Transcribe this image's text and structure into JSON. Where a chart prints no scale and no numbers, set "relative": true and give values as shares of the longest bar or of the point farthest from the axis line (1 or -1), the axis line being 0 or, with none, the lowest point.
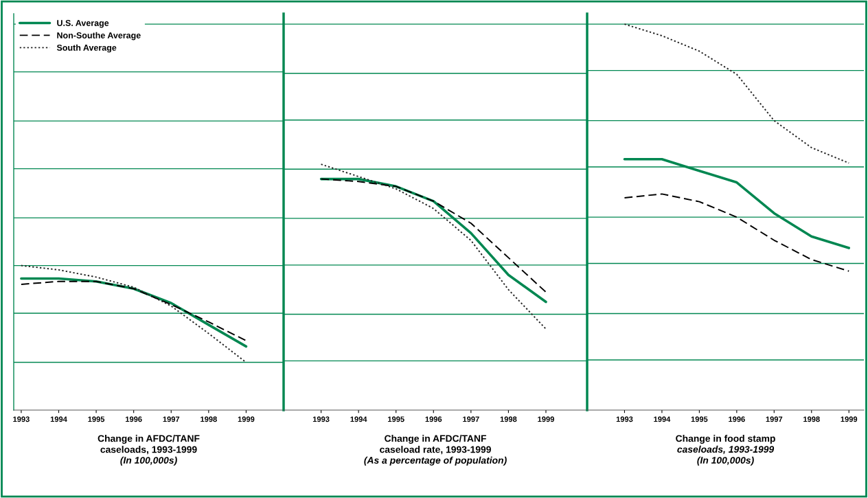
{
  "chart_data": [
    {
      "type": "line",
      "relative": true,
      "xlabel": "Change in AFDC/TANF\ncaseloads, 1993-1999",
      "subtitle": "(In 100,000s)",
      "x": [
        1993,
        1994,
        1995,
        1996,
        1997,
        1998,
        1999
      ],
      "xlim": [
        1992.8,
        2000.0
      ],
      "xticks": [
        1993,
        1994,
        1995,
        1996,
        1997,
        1998,
        1999
      ],
      "tick_labels": "x",
      "legend": "top left",
      "ref_lines": [
        {
          "axis": "y",
          "value": 0.33,
          "color": "#008751"
        },
        {
          "axis": "y",
          "value": 0.67,
          "color": "#008751"
        },
        {
          "axis": "y",
          "value": 1.0,
          "color": "#008751"
        },
        {
          "axis": "y",
          "value": 1.33,
          "color": "#008751"
        },
        {
          "axis": "y",
          "value": 1.67,
          "color": "#008751"
        },
        {
          "axis": "y",
          "value": 2.0,
          "color": "#008751"
        },
        {
          "axis": "y",
          "value": 2.34,
          "color": "#008751"
        },
        {
          "axis": "y",
          "value": 2.67,
          "color": "#008751"
        }
      ],
      "series": [
        {
          "name": "U.S. Average",
          "color": "#008751",
          "line_style": "solid",
          "values": [
            0.91,
            0.91,
            0.89,
            0.84,
            0.74,
            0.59,
            0.44
          ]
        },
        {
          "name": "Non-Southe Average",
          "color": "#000000",
          "line_style": "dashed",
          "values": [
            0.87,
            0.89,
            0.89,
            0.84,
            0.73,
            0.61,
            0.48
          ]
        },
        {
          "name": "South Average",
          "color": "#222222",
          "line_style": "dotted",
          "values": [
            1.0,
            0.97,
            0.92,
            0.85,
            0.72,
            0.53,
            0.33
          ]
        }
      ]
    },
    {
      "type": "line",
      "relative": true,
      "xlabel": "Change in AFDC/TANF\ncaseload rate, 1993-1999",
      "subtitle": "(As a percentage of population)",
      "x": [
        1993,
        1994,
        1995,
        1996,
        1997,
        1998,
        1999
      ],
      "xlim": [
        1992.0,
        2000.1
      ],
      "xticks": [
        1993,
        1994,
        1995,
        1996,
        1997,
        1998,
        1999
      ],
      "tick_labels": "x",
      "ref_lines": [
        {
          "axis": "y",
          "value": 0.2,
          "color": "#008751"
        },
        {
          "axis": "y",
          "value": 0.39,
          "color": "#008751"
        },
        {
          "axis": "y",
          "value": 0.59,
          "color": "#008751"
        },
        {
          "axis": "y",
          "value": 0.78,
          "color": "#008751"
        },
        {
          "axis": "y",
          "value": 0.98,
          "color": "#008751"
        },
        {
          "axis": "y",
          "value": 1.18,
          "color": "#008751"
        },
        {
          "axis": "y",
          "value": 1.37,
          "color": "#008751"
        },
        {
          "axis": "y",
          "value": 1.57,
          "color": "#008751"
        }
      ],
      "series": [
        {
          "color": "#008751",
          "line_style": "solid",
          "values": [
            0.94,
            0.94,
            0.91,
            0.85,
            0.72,
            0.55,
            0.44
          ]
        },
        {
          "color": "#000000",
          "line_style": "dashed",
          "values": [
            0.94,
            0.93,
            0.91,
            0.85,
            0.76,
            0.62,
            0.48
          ]
        },
        {
          "color": "#222222",
          "line_style": "dotted",
          "values": [
            1.0,
            0.95,
            0.9,
            0.82,
            0.69,
            0.49,
            0.33
          ]
        }
      ]
    },
    {
      "type": "line",
      "relative": true,
      "xlabel": "Change in food stamp",
      "subtitle": "caseloads, 1993-1999\n(In 100,000s)",
      "x": [
        1993,
        1994,
        1995,
        1996,
        1997,
        1998,
        1999
      ],
      "xlim": [
        1992.0,
        1999.4
      ],
      "xticks": [
        1993,
        1994,
        1995,
        1996,
        1997,
        1998,
        1999
      ],
      "tick_labels": "x",
      "ref_lines": [
        {
          "axis": "y",
          "value": 0.13,
          "color": "#008751"
        },
        {
          "axis": "y",
          "value": 0.25,
          "color": "#008751"
        },
        {
          "axis": "y",
          "value": 0.38,
          "color": "#008751"
        },
        {
          "axis": "y",
          "value": 0.5,
          "color": "#008751"
        },
        {
          "axis": "y",
          "value": 0.63,
          "color": "#008751"
        },
        {
          "axis": "y",
          "value": 0.75,
          "color": "#008751"
        },
        {
          "axis": "y",
          "value": 0.88,
          "color": "#008751"
        },
        {
          "axis": "y",
          "value": 1.0,
          "color": "#008751"
        }
      ],
      "series": [
        {
          "color": "#008751",
          "line_style": "solid",
          "values": [
            0.65,
            0.65,
            0.62,
            0.59,
            0.51,
            0.45,
            0.42
          ]
        },
        {
          "color": "#000000",
          "line_style": "dashed",
          "values": [
            0.55,
            0.56,
            0.54,
            0.5,
            0.44,
            0.39,
            0.36
          ]
        },
        {
          "color": "#222222",
          "line_style": "dotted",
          "values": [
            1.0,
            0.97,
            0.93,
            0.87,
            0.75,
            0.68,
            0.64
          ]
        }
      ]
    }
  ]
}
